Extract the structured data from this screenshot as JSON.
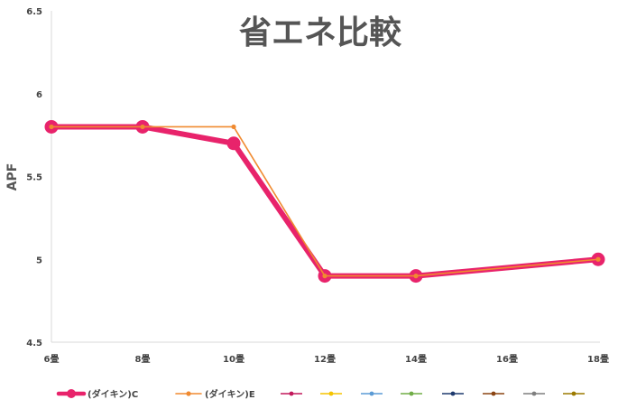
{
  "chart_data": {
    "type": "line",
    "title": "省エネ比較",
    "xlabel": "",
    "ylabel": "APF",
    "categories": [
      "6畳",
      "8畳",
      "10畳",
      "12畳",
      "14畳",
      "16畳",
      "18畳"
    ],
    "yticks": [
      "4.5",
      "5",
      "5.5",
      "6",
      "6.5"
    ],
    "ylim": [
      4.5,
      6.5
    ],
    "grid": false,
    "legend_position": "bottom",
    "series": [
      {
        "name": "(ダイキン)C",
        "color": "#e8236b",
        "values": [
          5.8,
          5.8,
          5.7,
          4.9,
          4.9,
          null,
          5.0
        ]
      },
      {
        "name": "(ダイキン)E",
        "color": "#f08a30",
        "values": [
          5.8,
          5.8,
          5.8,
          4.9,
          4.9,
          null,
          5.0
        ]
      }
    ],
    "empty_legend_entries": [
      {
        "color": "#c2185b"
      },
      {
        "color": "#f5c400"
      },
      {
        "color": "#5b9bd5"
      },
      {
        "color": "#70ad47"
      },
      {
        "color": "#1f3a6e"
      },
      {
        "color": "#8b4513"
      },
      {
        "color": "#7f7f7f"
      },
      {
        "color": "#9c7a00"
      }
    ]
  }
}
